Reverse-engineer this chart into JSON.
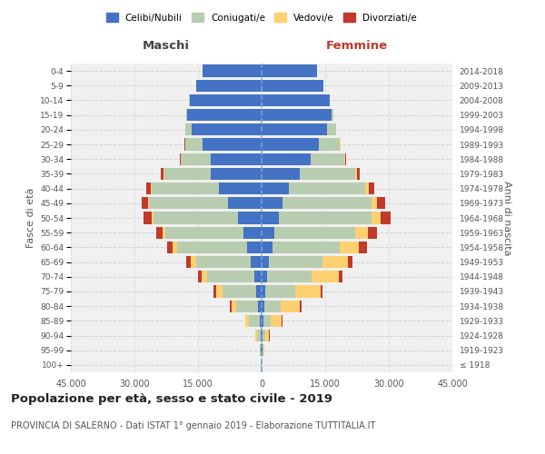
{
  "age_groups": [
    "100+",
    "95-99",
    "90-94",
    "85-89",
    "80-84",
    "75-79",
    "70-74",
    "65-69",
    "60-64",
    "55-59",
    "50-54",
    "45-49",
    "40-44",
    "35-39",
    "30-34",
    "25-29",
    "20-24",
    "15-19",
    "10-14",
    "5-9",
    "0-4"
  ],
  "birth_years": [
    "≤ 1918",
    "1919-1923",
    "1924-1928",
    "1929-1933",
    "1934-1938",
    "1939-1943",
    "1944-1948",
    "1949-1953",
    "1954-1958",
    "1959-1963",
    "1964-1968",
    "1969-1973",
    "1974-1978",
    "1979-1983",
    "1984-1988",
    "1989-1993",
    "1994-1998",
    "1999-2003",
    "2004-2008",
    "2009-2013",
    "2014-2018"
  ],
  "male": {
    "celibi": [
      100,
      200,
      300,
      500,
      900,
      1200,
      1800,
      2500,
      3500,
      4200,
      5500,
      8000,
      10000,
      12000,
      12000,
      14000,
      16500,
      17500,
      17000,
      15500,
      14000
    ],
    "coniugati": [
      50,
      200,
      800,
      2500,
      5000,
      8000,
      11000,
      13000,
      16500,
      18500,
      20000,
      18500,
      16000,
      11000,
      7000,
      4000,
      1500,
      300,
      50,
      0,
      0
    ],
    "vedovi": [
      20,
      100,
      400,
      800,
      1200,
      1500,
      1400,
      1300,
      1000,
      700,
      500,
      300,
      200,
      100,
      50,
      20,
      10,
      0,
      0,
      0,
      0
    ],
    "divorziati": [
      5,
      30,
      80,
      150,
      300,
      600,
      900,
      1000,
      1200,
      1500,
      1800,
      1500,
      1000,
      600,
      300,
      100,
      30,
      10,
      0,
      0,
      0
    ]
  },
  "female": {
    "nubili": [
      100,
      200,
      300,
      400,
      600,
      900,
      1200,
      1800,
      2500,
      3000,
      4000,
      5000,
      6500,
      9000,
      11500,
      13500,
      15500,
      16500,
      16000,
      14500,
      13000
    ],
    "coniugate": [
      50,
      150,
      600,
      1800,
      4000,
      7000,
      10500,
      12500,
      16000,
      19000,
      22000,
      21000,
      18000,
      13000,
      8000,
      5000,
      2000,
      400,
      50,
      0,
      0
    ],
    "vedove": [
      30,
      200,
      900,
      2500,
      4500,
      6000,
      6500,
      6000,
      4500,
      3000,
      2000,
      1200,
      700,
      400,
      200,
      80,
      30,
      10,
      0,
      0,
      0
    ],
    "divorziate": [
      5,
      30,
      80,
      150,
      300,
      500,
      800,
      1200,
      1800,
      2200,
      2500,
      2000,
      1300,
      700,
      300,
      100,
      30,
      10,
      0,
      0,
      0
    ]
  },
  "colors": {
    "celibi": "#4472C4",
    "coniugati": "#B8CCB0",
    "vedovi": "#FFD06F",
    "divorziati": "#C0392B"
  },
  "xlim": 45000,
  "title": "Popolazione per età, sesso e stato civile - 2019",
  "subtitle": "PROVINCIA DI SALERNO - Dati ISTAT 1° gennaio 2019 - Elaborazione TUTTITALIA.IT",
  "xlabel_left": "Maschi",
  "xlabel_right": "Femmine",
  "ylabel_left": "Fasce di età",
  "ylabel_right": "Anni di nascita",
  "legend_labels": [
    "Celibi/Nubili",
    "Coniugati/e",
    "Vedovi/e",
    "Divorziati/e"
  ],
  "xtick_labels": [
    "45.000",
    "30.000",
    "15.000",
    "0",
    "15.000",
    "30.000",
    "45.000"
  ],
  "background_color": "#FFFFFF",
  "plot_bg_color": "#F0F0F0"
}
